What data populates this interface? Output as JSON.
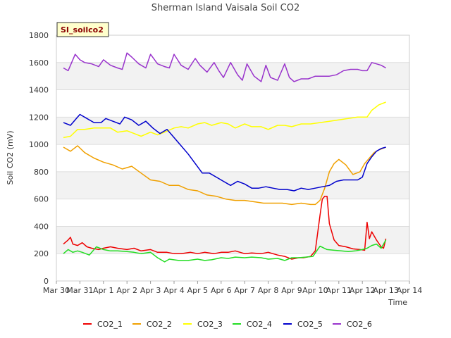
{
  "chart_data": {
    "type": "line",
    "title": "Sherman Island Vaisala Soil CO2",
    "badge": "SI_soilco2",
    "xlabel": "Time",
    "ylabel": "Soil CO2 (mV)",
    "ylim": [
      0,
      1800
    ],
    "yticks": [
      0,
      200,
      400,
      600,
      800,
      1000,
      1200,
      1400,
      1600,
      1800
    ],
    "xlim": [
      "Mar 30",
      "Apr 14"
    ],
    "xticks": [
      "Mar 30",
      "Mar 31",
      "Apr 1",
      "Apr 2",
      "Apr 3",
      "Apr 4",
      "Apr 5",
      "Apr 6",
      "Apr 7",
      "Apr 8",
      "Apr 9",
      "Apr 10",
      "Apr 11",
      "Apr 12",
      "Apr 13",
      "Apr 14"
    ],
    "x_unit": "day index from Mar 30",
    "grid_bands": true,
    "legend_position": "bottom",
    "series": [
      {
        "name": "CO2_1",
        "color": "#ee0000",
        "x": [
          0.3,
          0.5,
          0.6,
          0.7,
          0.9,
          1.1,
          1.3,
          1.5,
          1.8,
          2.0,
          2.3,
          2.6,
          3.0,
          3.3,
          3.6,
          4.0,
          4.3,
          4.7,
          5.0,
          5.3,
          5.7,
          6.0,
          6.3,
          6.7,
          7.0,
          7.3,
          7.6,
          8.0,
          8.3,
          8.7,
          9.0,
          9.4,
          9.7,
          10.0,
          10.3,
          10.5,
          10.8,
          11.0,
          11.2,
          11.3,
          11.4,
          11.5,
          11.6,
          11.8,
          12.0,
          12.3,
          12.6,
          12.9,
          13.1,
          13.2,
          13.3,
          13.4,
          13.6,
          13.8,
          13.9,
          14.0
        ],
        "y": [
          270,
          300,
          320,
          270,
          260,
          280,
          250,
          240,
          230,
          240,
          250,
          240,
          230,
          240,
          220,
          230,
          210,
          210,
          200,
          200,
          210,
          200,
          210,
          200,
          210,
          210,
          220,
          200,
          205,
          200,
          210,
          190,
          180,
          160,
          170,
          170,
          180,
          220,
          480,
          600,
          620,
          620,
          420,
          300,
          260,
          250,
          235,
          230,
          225,
          430,
          310,
          360,
          300,
          250,
          240,
          310
        ]
      },
      {
        "name": "CO2_2",
        "color": "#f0a000",
        "x": [
          0.3,
          0.6,
          0.9,
          1.2,
          1.6,
          2.0,
          2.4,
          2.8,
          3.2,
          3.6,
          4.0,
          4.4,
          4.8,
          5.2,
          5.6,
          6.0,
          6.4,
          6.8,
          7.2,
          7.6,
          8.0,
          8.4,
          8.8,
          9.2,
          9.6,
          10.0,
          10.4,
          10.8,
          11.0,
          11.2,
          11.4,
          11.6,
          11.8,
          12.0,
          12.3,
          12.6,
          12.9,
          13.1,
          13.3,
          13.5,
          13.7,
          14.0
        ],
        "y": [
          980,
          950,
          990,
          940,
          900,
          870,
          850,
          820,
          840,
          790,
          740,
          730,
          700,
          700,
          670,
          660,
          630,
          620,
          600,
          590,
          590,
          580,
          570,
          570,
          570,
          560,
          570,
          560,
          560,
          590,
          680,
          800,
          860,
          890,
          850,
          780,
          800,
          860,
          900,
          940,
          960,
          980
        ]
      },
      {
        "name": "CO2_3",
        "color": "#ffff00",
        "x": [
          0.3,
          0.6,
          0.9,
          1.2,
          1.6,
          2.0,
          2.3,
          2.6,
          3.0,
          3.3,
          3.6,
          4.0,
          4.3,
          4.6,
          5.0,
          5.3,
          5.6,
          6.0,
          6.3,
          6.6,
          7.0,
          7.3,
          7.6,
          8.0,
          8.3,
          8.7,
          9.0,
          9.4,
          9.7,
          10.0,
          10.4,
          10.8,
          11.2,
          11.6,
          12.0,
          12.4,
          12.8,
          13.0,
          13.2,
          13.4,
          13.7,
          14.0
        ],
        "y": [
          1050,
          1060,
          1110,
          1110,
          1120,
          1120,
          1120,
          1090,
          1100,
          1080,
          1060,
          1090,
          1070,
          1090,
          1120,
          1130,
          1120,
          1150,
          1160,
          1140,
          1160,
          1150,
          1120,
          1150,
          1130,
          1130,
          1110,
          1140,
          1140,
          1130,
          1150,
          1150,
          1160,
          1170,
          1180,
          1190,
          1200,
          1200,
          1200,
          1250,
          1290,
          1310
        ]
      },
      {
        "name": "CO2_4",
        "color": "#22dd22",
        "x": [
          0.3,
          0.5,
          0.7,
          0.9,
          1.1,
          1.4,
          1.7,
          2.0,
          2.3,
          2.6,
          3.0,
          3.3,
          3.6,
          4.0,
          4.3,
          4.6,
          4.8,
          5.2,
          5.6,
          6.0,
          6.3,
          6.6,
          7.0,
          7.3,
          7.6,
          8.0,
          8.3,
          8.7,
          9.0,
          9.4,
          9.7,
          10.0,
          10.3,
          10.6,
          10.9,
          11.2,
          11.5,
          11.8,
          12.1,
          12.4,
          12.7,
          13.0,
          13.2,
          13.4,
          13.6,
          13.8,
          14.0
        ],
        "y": [
          200,
          230,
          210,
          220,
          210,
          190,
          250,
          230,
          220,
          220,
          215,
          210,
          200,
          210,
          170,
          140,
          160,
          150,
          150,
          160,
          150,
          155,
          170,
          165,
          175,
          170,
          175,
          170,
          160,
          165,
          150,
          170,
          170,
          175,
          180,
          255,
          230,
          225,
          220,
          215,
          220,
          230,
          240,
          260,
          270,
          240,
          300
        ]
      },
      {
        "name": "CO2_5",
        "color": "#0000cc",
        "x": [
          0.3,
          0.6,
          0.9,
          1.0,
          1.3,
          1.6,
          1.9,
          2.1,
          2.4,
          2.7,
          2.9,
          3.2,
          3.5,
          3.8,
          4.1,
          4.4,
          4.7,
          5.0,
          5.3,
          5.6,
          5.9,
          6.2,
          6.5,
          6.8,
          7.1,
          7.4,
          7.7,
          8.0,
          8.3,
          8.6,
          8.9,
          9.2,
          9.5,
          9.8,
          10.1,
          10.4,
          10.7,
          11.0,
          11.3,
          11.6,
          11.9,
          12.2,
          12.5,
          12.8,
          13.0,
          13.2,
          13.4,
          13.6,
          13.8,
          14.0
        ],
        "y": [
          1160,
          1140,
          1200,
          1220,
          1190,
          1160,
          1160,
          1190,
          1170,
          1150,
          1200,
          1180,
          1140,
          1170,
          1120,
          1080,
          1110,
          1050,
          990,
          930,
          860,
          790,
          790,
          760,
          730,
          700,
          730,
          710,
          680,
          680,
          690,
          680,
          670,
          670,
          660,
          680,
          670,
          680,
          690,
          700,
          730,
          740,
          740,
          740,
          760,
          860,
          910,
          950,
          970,
          980
        ]
      },
      {
        "name": "CO2_6",
        "color": "#9933cc",
        "x": [
          0.3,
          0.5,
          0.8,
          1.0,
          1.2,
          1.5,
          1.8,
          2.0,
          2.3,
          2.6,
          2.8,
          3.0,
          3.2,
          3.5,
          3.8,
          4.0,
          4.3,
          4.6,
          4.8,
          5.0,
          5.3,
          5.6,
          5.9,
          6.1,
          6.4,
          6.7,
          6.9,
          7.1,
          7.4,
          7.7,
          7.9,
          8.1,
          8.4,
          8.7,
          8.9,
          9.1,
          9.4,
          9.7,
          9.9,
          10.1,
          10.4,
          10.7,
          11.0,
          11.3,
          11.6,
          11.9,
          12.2,
          12.5,
          12.8,
          13.0,
          13.2,
          13.4,
          13.6,
          13.8,
          14.0
        ],
        "y": [
          1560,
          1540,
          1660,
          1620,
          1600,
          1590,
          1570,
          1620,
          1580,
          1560,
          1550,
          1670,
          1640,
          1590,
          1560,
          1660,
          1590,
          1570,
          1560,
          1660,
          1580,
          1550,
          1630,
          1580,
          1530,
          1600,
          1540,
          1490,
          1600,
          1510,
          1470,
          1590,
          1500,
          1460,
          1580,
          1490,
          1470,
          1590,
          1490,
          1460,
          1480,
          1480,
          1500,
          1500,
          1500,
          1510,
          1540,
          1550,
          1550,
          1540,
          1540,
          1600,
          1590,
          1580,
          1560
        ]
      }
    ]
  }
}
